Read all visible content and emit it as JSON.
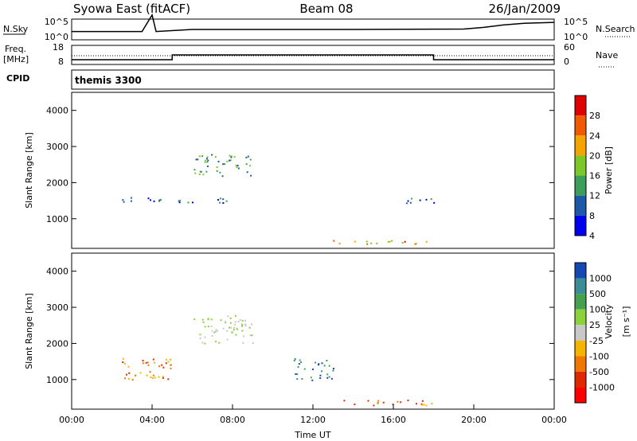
{
  "chart_data": [
    {
      "type": "line",
      "header": {
        "left": "Syowa East (fitACF)",
        "center": "Beam 08",
        "right": "26/Jan/2009"
      },
      "left_label": "N.Sky",
      "right_label": "N.Search",
      "left_ticks": [
        "10^5",
        "10^0"
      ],
      "right_ticks": [
        "10^5",
        "10^0"
      ],
      "series": [
        {
          "name": "N.Sky",
          "x": [
            0,
            3.5,
            4,
            4.2,
            6,
            10,
            14,
            19.5,
            20.5,
            21.5,
            22.5,
            24
          ],
          "y": [
            2,
            2,
            6,
            2,
            2.5,
            2.5,
            2.5,
            2.6,
            3,
            3.6,
            4,
            4.2
          ]
        }
      ]
    },
    {
      "type": "line",
      "left_label": "Freq.",
      "left_unit": "[MHz]",
      "right_label": "Nave",
      "left_ticks": [
        "18",
        "8"
      ],
      "right_ticks": [
        "60",
        "0"
      ],
      "series": [
        {
          "name": "Freq.",
          "x": [
            0,
            5,
            5,
            18,
            18,
            24
          ],
          "y": [
            10.5,
            10.5,
            13,
            13,
            10.5,
            10.5
          ]
        }
      ]
    },
    {
      "type": "table",
      "left_label": "CPID",
      "value": "themis 3300"
    },
    {
      "type": "heatmap",
      "ylabel": "Slant Range [km]",
      "xlabel": "",
      "ylim": [
        180,
        4500
      ],
      "yticks": [
        1000,
        2000,
        3000,
        4000
      ],
      "colorbar_label": "Power [dB]",
      "colorbar_ticks": [
        "28",
        "24",
        "20",
        "16",
        "12",
        "8",
        "4"
      ],
      "colorbar_colors": [
        "#e00000",
        "#f05a00",
        "#f5a500",
        "#7cc828",
        "#3c9e5a",
        "#1c5aa8",
        "#0000f0"
      ],
      "blobs": [
        {
          "x": [
            13,
            18
          ],
          "y": [
            300,
            420
          ],
          "v": "high"
        },
        {
          "x": [
            2.5,
            8
          ],
          "y": [
            1450,
            1600
          ],
          "v": "low"
        },
        {
          "x": [
            6,
            9
          ],
          "y": [
            2200,
            2800
          ],
          "v": "mid"
        },
        {
          "x": [
            16,
            18
          ],
          "y": [
            1450,
            1600
          ],
          "v": "low"
        }
      ]
    },
    {
      "type": "heatmap",
      "ylabel": "Slant Range [km]",
      "xlabel": "Time UT",
      "ylim": [
        180,
        4500
      ],
      "yticks": [
        1000,
        2000,
        3000,
        4000
      ],
      "xticks": [
        "00:00",
        "04:00",
        "08:00",
        "12:00",
        "16:00",
        "20:00",
        "00:00"
      ],
      "xlim": [
        0,
        24
      ],
      "colorbar_label": "Velocity",
      "colorbar_unit": "[m s⁻¹]",
      "colorbar_ticks": [
        "1000",
        "500",
        "100",
        "25",
        "-25",
        "-100",
        "-500",
        "-1000"
      ],
      "colorbar_colors": [
        "#1448b4",
        "#3c8c96",
        "#46a050",
        "#8cd23c",
        "#c8c8c8",
        "#f5b400",
        "#f07800",
        "#e02800",
        "#ff0000"
      ],
      "blobs": [
        {
          "x": [
            13,
            18
          ],
          "y": [
            300,
            450
          ],
          "v": "neg"
        },
        {
          "x": [
            2.5,
            5
          ],
          "y": [
            1000,
            1600
          ],
          "v": "neg"
        },
        {
          "x": [
            6,
            9
          ],
          "y": [
            2000,
            2800
          ],
          "v": "zero"
        },
        {
          "x": [
            11,
            13
          ],
          "y": [
            1000,
            1600
          ],
          "v": "pos"
        }
      ]
    }
  ]
}
